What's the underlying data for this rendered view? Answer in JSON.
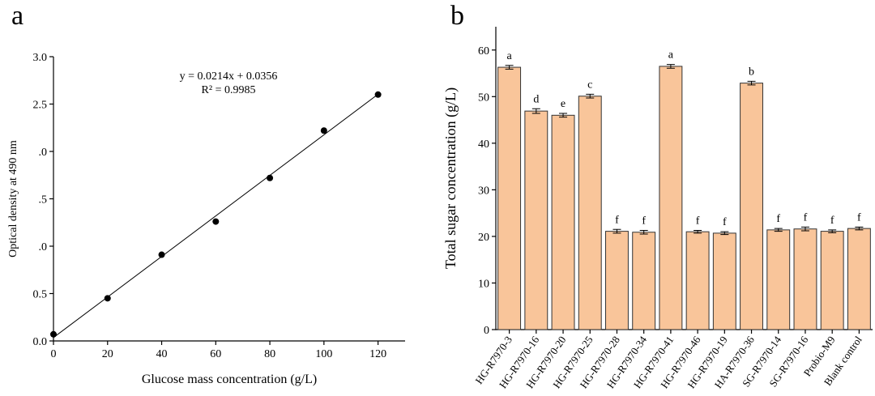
{
  "chart_data": [
    {
      "type": "scatter",
      "panel_label": "a",
      "xlabel": "Glucose mass concentration (g/L)",
      "ylabel": "Optical density at 490 nm",
      "x": [
        0,
        20,
        40,
        60,
        80,
        100,
        120
      ],
      "series": [
        {
          "color": "#000000",
          "values": [
            0.07,
            0.45,
            0.91,
            1.26,
            1.72,
            2.22,
            2.6
          ]
        }
      ],
      "fit": {
        "slope": 0.0214,
        "intercept": 0.0356
      },
      "annotations": [
        "y = 0.0214x + 0.0356",
        "R² = 0.9985"
      ],
      "xlim": [
        0,
        130
      ],
      "xticks": [
        0,
        20,
        40,
        60,
        80,
        100,
        120
      ],
      "ylim": [
        0,
        3.0
      ],
      "yticks": [
        {
          "value": 0,
          "label": "0.0"
        },
        0.5,
        {
          "value": 1,
          "label": ".0"
        },
        {
          "value": 1.5,
          "label": ".5"
        },
        {
          "value": 2,
          "label": ".0"
        },
        2.5,
        {
          "value": 3,
          "label": "3.0"
        }
      ]
    },
    {
      "type": "bar",
      "panel_label": "b",
      "ylabel": "Total sugar concentration  (g/L)",
      "categories": [
        "HG-R7970-3",
        "HG-R7970-16",
        "HG-R7970-20",
        "HG-R7970-25",
        "HG-R7970-28",
        "HG-R7970-34",
        "HG-R7970-41",
        "HG-R7970-46",
        "HG-R7970-19",
        "HA-R7970-36",
        "SG-R7970-14",
        "SG-R7970-16",
        "Probio-M9",
        "Blank control"
      ],
      "values": [
        56.3,
        46.9,
        46.0,
        50.1,
        21.1,
        20.9,
        56.5,
        21.0,
        20.7,
        52.9,
        21.4,
        21.6,
        21.1,
        21.7
      ],
      "errors": [
        0.4,
        0.5,
        0.4,
        0.4,
        0.4,
        0.4,
        0.4,
        0.3,
        0.3,
        0.4,
        0.3,
        0.4,
        0.3,
        0.3
      ],
      "significance": [
        "a",
        "d",
        "e",
        "c",
        "f",
        "f",
        "a",
        "f",
        "f",
        "b",
        "f",
        "f",
        "f",
        "f"
      ],
      "color": "#f9c59a",
      "edgecolor": "#333333",
      "ylim": [
        0,
        65
      ],
      "yticks": [
        0,
        10,
        20,
        30,
        40,
        50,
        60
      ]
    }
  ]
}
